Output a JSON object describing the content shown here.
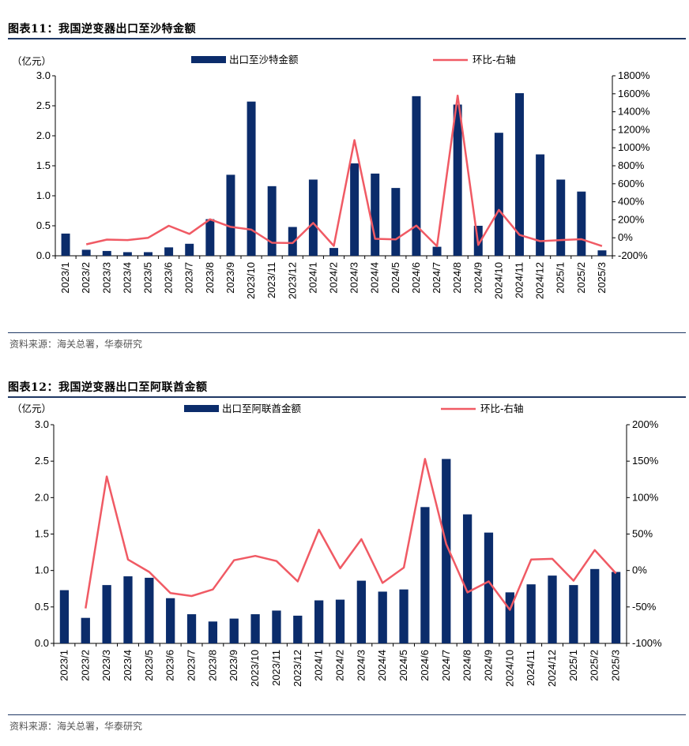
{
  "colors": {
    "bar": "#0b2c6b",
    "line": "#f05a64",
    "rule": "#1f3864"
  },
  "chart_data": [
    {
      "type": "bar",
      "fig_label": "图表11：",
      "title": "我国逆变器出口至沙特金额",
      "unit_label": "（亿元）",
      "categories": [
        "2023/1",
        "2023/2",
        "2023/3",
        "2023/4",
        "2023/5",
        "2023/6",
        "2023/7",
        "2023/8",
        "2023/9",
        "2023/10",
        "2023/11",
        "2023/12",
        "2024/1",
        "2024/2",
        "2024/3",
        "2024/4",
        "2024/5",
        "2024/6",
        "2024/7",
        "2024/8",
        "2024/9",
        "2024/10",
        "2024/11",
        "2024/12",
        "2025/1",
        "2025/2",
        "2025/3"
      ],
      "series": [
        {
          "name": "出口至沙特金额",
          "kind": "bar",
          "axis": "left",
          "values": [
            0.37,
            0.1,
            0.08,
            0.06,
            0.06,
            0.14,
            0.2,
            0.61,
            1.35,
            2.57,
            1.16,
            0.48,
            1.27,
            0.13,
            1.54,
            1.37,
            1.13,
            2.66,
            0.15,
            2.52,
            0.5,
            2.05,
            2.71,
            1.69,
            1.27,
            1.07,
            0.09
          ]
        },
        {
          "name": "环比-右轴",
          "kind": "line",
          "axis": "right",
          "values": [
            null,
            -73,
            -20,
            -25,
            0,
            133,
            43,
            205,
            121,
            90,
            -55,
            -59,
            165,
            -90,
            1085,
            -11,
            -18,
            135,
            -94,
            1580,
            -80,
            310,
            32,
            -38,
            -25,
            -16,
            -92
          ]
        }
      ],
      "ylim": [
        0,
        3.0
      ],
      "yticks": [
        "0.0",
        "0.5",
        "1.0",
        "1.5",
        "2.0",
        "2.5",
        "3.0"
      ],
      "y2lim": [
        -200,
        1800
      ],
      "y2ticks": [
        "-200%",
        "0%",
        "200%",
        "400%",
        "600%",
        "800%",
        "1000%",
        "1200%",
        "1400%",
        "1600%",
        "1800%"
      ],
      "source": "资料来源：海关总署，华泰研究"
    },
    {
      "type": "bar",
      "fig_label": "图表12：",
      "title": "我国逆变器出口至阿联酋金额",
      "unit_label": "（亿元）",
      "categories": [
        "2023/1",
        "2023/2",
        "2023/3",
        "2023/4",
        "2023/5",
        "2023/6",
        "2023/7",
        "2023/8",
        "2023/9",
        "2023/10",
        "2023/11",
        "2023/12",
        "2024/1",
        "2024/2",
        "2024/3",
        "2024/4",
        "2024/5",
        "2024/6",
        "2024/7",
        "2024/8",
        "2024/9",
        "2024/10",
        "2024/11",
        "2024/12",
        "2025/1",
        "2025/2",
        "2025/3"
      ],
      "series": [
        {
          "name": "出口至阿联酋金额",
          "kind": "bar",
          "axis": "left",
          "values": [
            0.73,
            0.35,
            0.8,
            0.92,
            0.9,
            0.62,
            0.4,
            0.3,
            0.34,
            0.4,
            0.45,
            0.38,
            0.59,
            0.6,
            0.86,
            0.71,
            0.74,
            1.87,
            2.53,
            1.77,
            1.52,
            0.7,
            0.81,
            0.93,
            0.8,
            1.02,
            0.98
          ]
        },
        {
          "name": "环比-右轴",
          "kind": "line",
          "axis": "right",
          "values": [
            null,
            -52,
            129,
            15,
            -2,
            -31,
            -35,
            -26,
            14,
            20,
            13,
            -15,
            56,
            3,
            43,
            -17,
            4,
            153,
            36,
            -30,
            -15,
            -54,
            15,
            16,
            -14,
            28,
            -4
          ]
        }
      ],
      "ylim": [
        0,
        3.0
      ],
      "yticks": [
        "0.0",
        "0.5",
        "1.0",
        "1.5",
        "2.0",
        "2.5",
        "3.0"
      ],
      "y2lim": [
        -100,
        200
      ],
      "y2ticks": [
        "-100%",
        "-50%",
        "0%",
        "50%",
        "100%",
        "150%",
        "200%"
      ],
      "source": "资料来源：海关总署，华泰研究"
    }
  ]
}
